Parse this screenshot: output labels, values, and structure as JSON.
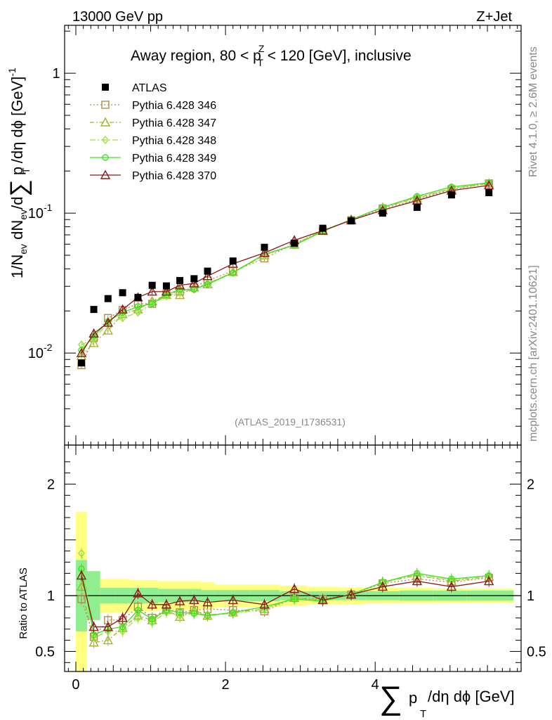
{
  "chart_data": {
    "type": "line",
    "energy_label": "13000 GeV pp",
    "process_label": "Z+Jet",
    "title": "Away region, 80 < p",
    "title_sup": "Z",
    "title_sub": "T",
    "title_tail": " < 120 [GeV], inclusive",
    "analysis_id": "(ATLAS_2019_I1736531)",
    "side_label_rivet": "Rivet 4.1.0, ≥ 2.6M events",
    "side_label_site": "mcplots.cern.ch [arXiv:2401.10621]",
    "ylabel_main": "1/N",
    "ylabel_ratio": "Ratio to ATLAS",
    "xlabel": "p",
    "xlabel_tail": "/dη dϕ [GeV]",
    "xlim": [
      -0.15,
      5.95
    ],
    "ylim_main": [
      0.0022,
      2.2
    ],
    "ylim_ratio": [
      0.32,
      2.35
    ],
    "x_ticks": [
      {
        "v": 0,
        "label": "0"
      },
      {
        "v": 2,
        "label": "2"
      },
      {
        "v": 4,
        "label": "4"
      }
    ],
    "y_ticks_main": [
      {
        "v": 0.01,
        "label": "10",
        "exp": "-2"
      },
      {
        "v": 0.1,
        "label": "10",
        "exp": "-1"
      },
      {
        "v": 1,
        "label": "1",
        "exp": ""
      }
    ],
    "y_ticks_ratio": [
      {
        "v": 0.5,
        "label": "0.5"
      },
      {
        "v": 1,
        "label": "1"
      },
      {
        "v": 2,
        "label": "2"
      }
    ],
    "bins": [
      [
        0.0,
        0.15
      ],
      [
        0.15,
        0.325
      ],
      [
        0.325,
        0.525
      ],
      [
        0.525,
        0.725
      ],
      [
        0.725,
        0.925
      ],
      [
        0.925,
        1.1
      ],
      [
        1.1,
        1.3
      ],
      [
        1.3,
        1.475
      ],
      [
        1.475,
        1.675
      ],
      [
        1.675,
        1.85
      ],
      [
        1.85,
        2.325
      ],
      [
        2.325,
        2.725
      ],
      [
        2.725,
        3.1
      ],
      [
        3.1,
        3.5
      ],
      [
        3.5,
        3.875
      ],
      [
        3.875,
        4.325
      ],
      [
        4.325,
        4.775
      ],
      [
        4.775,
        5.225
      ],
      [
        5.225,
        5.85
      ]
    ],
    "band_inner": [
      0.32,
      0.22,
      0.07,
      0.07,
      0.07,
      0.07,
      0.06,
      0.06,
      0.06,
      0.05,
      0.05,
      0.05,
      0.04,
      0.04,
      0.04,
      0.04,
      0.045,
      0.045,
      0.045
    ],
    "band_outer": [
      0.75,
      0.18,
      0.15,
      0.15,
      0.14,
      0.14,
      0.13,
      0.13,
      0.13,
      0.12,
      0.1,
      0.1,
      0.09,
      0.08,
      0.075,
      0.07,
      0.07,
      0.065,
      0.065
    ],
    "x": [
      0.075,
      0.24,
      0.43,
      0.625,
      0.83,
      1.02,
      1.21,
      1.39,
      1.58,
      1.76,
      2.1,
      2.52,
      2.92,
      3.3,
      3.68,
      4.1,
      4.56,
      5.02,
      5.52
    ],
    "data": {
      "name": "ATLAS",
      "values": [
        0.0085,
        0.0205,
        0.0245,
        0.027,
        0.025,
        0.0305,
        0.0302,
        0.033,
        0.034,
        0.0385,
        0.0455,
        0.057,
        0.061,
        0.078,
        0.088,
        0.1,
        0.11,
        0.135,
        0.14
      ]
    },
    "series": [
      {
        "name": "Pythia 6.428 346",
        "color": "#b08c50",
        "marker": "square",
        "dash": "2,3",
        "values": [
          0.0082,
          0.0128,
          0.0178,
          0.0203,
          0.0225,
          0.0225,
          0.0265,
          0.0275,
          0.0295,
          0.033,
          0.0385,
          0.0475,
          0.0605,
          0.075,
          0.089,
          0.108,
          0.125,
          0.148,
          0.163
        ],
        "ratio": [
          0.97,
          0.63,
          0.78,
          0.78,
          0.9,
          0.8,
          0.88,
          0.85,
          0.87,
          0.88,
          0.87,
          0.86,
          0.98,
          0.97,
          1.01,
          1.11,
          1.15,
          1.12,
          1.16
        ]
      },
      {
        "name": "Pythia 6.428 347",
        "color": "#a7b22e",
        "marker": "triangle-open",
        "dash": "6,3,2,3",
        "values": [
          0.0095,
          0.0118,
          0.0145,
          0.019,
          0.0205,
          0.0235,
          0.026,
          0.026,
          0.0295,
          0.031,
          0.038,
          0.05,
          0.0595,
          0.0745,
          0.09,
          0.11,
          0.128,
          0.15,
          0.163
        ],
        "ratio": [
          1.08,
          0.58,
          0.6,
          0.71,
          0.82,
          0.78,
          0.87,
          0.81,
          0.87,
          0.82,
          0.85,
          0.88,
          0.98,
          0.96,
          1.01,
          1.12,
          1.18,
          1.13,
          1.17
        ]
      },
      {
        "name": "Pythia 6.428 348",
        "color": "#9ee040",
        "marker": "diamond",
        "dash": "8,3,2,3",
        "values": [
          0.0115,
          0.0125,
          0.0165,
          0.0178,
          0.0195,
          0.0225,
          0.0255,
          0.0275,
          0.0285,
          0.0315,
          0.0375,
          0.05,
          0.06,
          0.075,
          0.09,
          0.11,
          0.13,
          0.15,
          0.165
        ],
        "ratio": [
          1.38,
          0.62,
          0.68,
          0.68,
          0.8,
          0.76,
          0.85,
          0.82,
          0.84,
          0.83,
          0.84,
          0.88,
          0.98,
          0.96,
          1.01,
          1.12,
          1.19,
          1.14,
          1.18
        ]
      },
      {
        "name": "Pythia 6.428 349",
        "color": "#40e020",
        "marker": "circle",
        "dash": "",
        "values": [
          0.0105,
          0.0132,
          0.0168,
          0.0195,
          0.0215,
          0.0225,
          0.0262,
          0.0285,
          0.0285,
          0.031,
          0.0375,
          0.051,
          0.059,
          0.074,
          0.09,
          0.11,
          0.132,
          0.154,
          0.165
        ],
        "ratio": [
          1.24,
          0.65,
          0.7,
          0.72,
          0.87,
          0.79,
          0.87,
          0.85,
          0.84,
          0.82,
          0.85,
          0.9,
          0.97,
          0.95,
          1.01,
          1.12,
          1.2,
          1.15,
          1.18
        ]
      },
      {
        "name": "Pythia 6.428 370",
        "color": "#8b1a1a",
        "marker": "triangle-open",
        "dash": "",
        "values": [
          0.01,
          0.0138,
          0.0165,
          0.0205,
          0.025,
          0.0275,
          0.0275,
          0.0305,
          0.0315,
          0.0355,
          0.0435,
          0.052,
          0.064,
          0.075,
          0.089,
          0.105,
          0.123,
          0.145,
          0.158
        ],
        "ratio": [
          1.18,
          0.72,
          0.72,
          0.8,
          1.02,
          0.92,
          0.92,
          0.95,
          0.96,
          0.94,
          0.96,
          0.92,
          1.06,
          0.96,
          1.01,
          1.08,
          1.13,
          1.08,
          1.13
        ]
      }
    ]
  }
}
